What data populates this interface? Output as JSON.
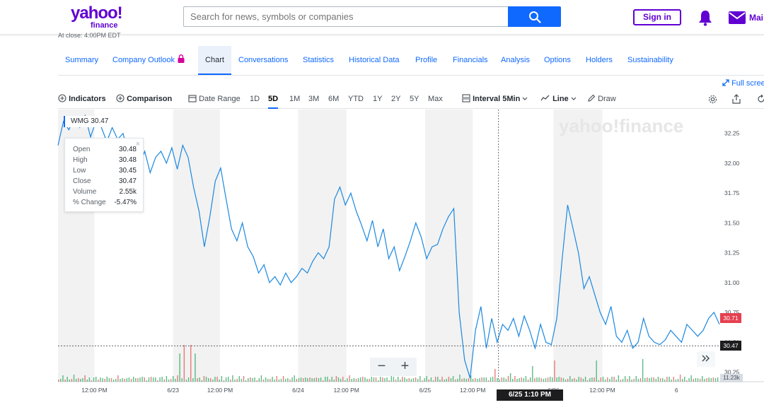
{
  "header": {
    "logo_top": "yahoo!",
    "logo_bottom": "finance",
    "search_placeholder": "Search for news, symbols or companies",
    "signin_label": "Sign in",
    "mail_label": "Mai"
  },
  "at_close": "At close: 4:00PM EDT",
  "tabs": [
    {
      "label": "Summary"
    },
    {
      "label": "Company Outlook"
    },
    {
      "label": "Chart"
    },
    {
      "label": "Conversations"
    },
    {
      "label": "Statistics"
    },
    {
      "label": "Historical Data"
    },
    {
      "label": "Profile"
    },
    {
      "label": "Financials"
    },
    {
      "label": "Analysis"
    },
    {
      "label": "Options"
    },
    {
      "label": "Holders"
    },
    {
      "label": "Sustainability"
    }
  ],
  "fullscreen_label": "Full scree",
  "toolbar": {
    "indicators": "Indicators",
    "comparison": "Comparison",
    "date_range": "Date Range",
    "ranges": [
      "1D",
      "5D",
      "1M",
      "3M",
      "6M",
      "YTD",
      "1Y",
      "2Y",
      "5Y",
      "Max"
    ],
    "active_range": "5D",
    "interval_label": "Interval",
    "interval_value": "5Min",
    "line_label": "Line",
    "draw_label": "Draw"
  },
  "tooltip": {
    "symbol_label": "WMG 30.47",
    "rows": [
      {
        "k": "Open",
        "v": "30.48"
      },
      {
        "k": "High",
        "v": "30.48"
      },
      {
        "k": "Low",
        "v": "30.45"
      },
      {
        "k": "Close",
        "v": "30.47"
      },
      {
        "k": "Volume",
        "v": "2.55k"
      },
      {
        "k": "% Change",
        "v": "-5.47%"
      }
    ]
  },
  "zoom": {
    "minus": "−",
    "plus": "+"
  },
  "crosshair_date": "6/25 1:10 PM",
  "price_tags": {
    "previous_close": "30.71",
    "current": "30.47"
  },
  "volume_tag": "11.23k",
  "watermark": "yahoo!finance",
  "colors": {
    "line": "#1a88e0",
    "vol_up": "#26a65b",
    "vol_down": "#e0524f",
    "prev_close_tag": "#e54050",
    "current_tag": "#1d1d1f"
  },
  "chart_data": {
    "type": "line",
    "series_name": "WMG",
    "yticks": [
      "32.25",
      "32.00",
      "31.75",
      "31.50",
      "31.25",
      "31.00",
      "30.75",
      "30.50",
      "30.25"
    ],
    "ytick_values": [
      32.25,
      32.0,
      31.75,
      31.5,
      31.25,
      31.0,
      30.75,
      30.5,
      30.25
    ],
    "ylim": [
      30.17,
      32.42
    ],
    "xticks": [
      "12:00 PM",
      "6/23",
      "12:00 PM",
      "6/24",
      "12:00 PM",
      "6/25",
      "12:00 PM",
      "6/26",
      "12:00 PM",
      "6"
    ],
    "xtick_pos": [
      0.055,
      0.174,
      0.245,
      0.363,
      0.436,
      0.555,
      0.627,
      0.749,
      0.823,
      0.935
    ],
    "shaded_sessions": [
      [
        0.0,
        0.055
      ],
      [
        0.174,
        0.245
      ],
      [
        0.363,
        0.436
      ],
      [
        0.555,
        0.627
      ],
      [
        0.749,
        0.823
      ]
    ],
    "crosshair_x": 0.666,
    "crosshair_y": 30.47,
    "price": [
      32.15,
      32.35,
      32.28,
      32.38,
      32.3,
      32.4,
      32.22,
      32.35,
      32.3,
      32.18,
      32.3,
      32.2,
      32.25,
      32.05,
      32.15,
      31.98,
      32.1,
      31.92,
      32.05,
      32.1,
      32.0,
      32.13,
      31.95,
      32.15,
      32.05,
      31.8,
      31.6,
      31.3,
      31.55,
      31.85,
      31.96,
      31.7,
      31.45,
      31.35,
      31.5,
      31.3,
      31.22,
      31.08,
      31.15,
      31.0,
      31.05,
      30.98,
      31.08,
      31.0,
      31.05,
      31.12,
      31.08,
      31.18,
      31.25,
      31.2,
      31.3,
      31.7,
      31.8,
      31.65,
      31.75,
      31.6,
      31.48,
      31.35,
      31.52,
      31.3,
      31.45,
      31.2,
      31.3,
      31.1,
      31.22,
      31.35,
      31.5,
      31.38,
      31.2,
      31.3,
      31.32,
      31.45,
      31.55,
      31.62,
      30.75,
      30.35,
      30.2,
      30.6,
      30.8,
      30.45,
      30.7,
      30.5,
      30.65,
      30.6,
      30.7,
      30.55,
      30.72,
      30.6,
      30.45,
      30.65,
      30.5,
      30.48,
      30.7,
      31.2,
      31.65,
      31.45,
      31.25,
      30.95,
      31.05,
      30.9,
      30.75,
      30.65,
      30.8,
      30.55,
      30.5,
      30.6,
      30.45,
      30.5,
      30.7,
      30.55,
      30.5,
      30.48,
      30.52,
      30.6,
      30.55,
      30.5,
      30.65,
      30.6,
      30.55,
      30.6,
      30.7,
      30.75,
      30.65
    ],
    "volume_hint": "small bars along the bottom of the chart"
  }
}
